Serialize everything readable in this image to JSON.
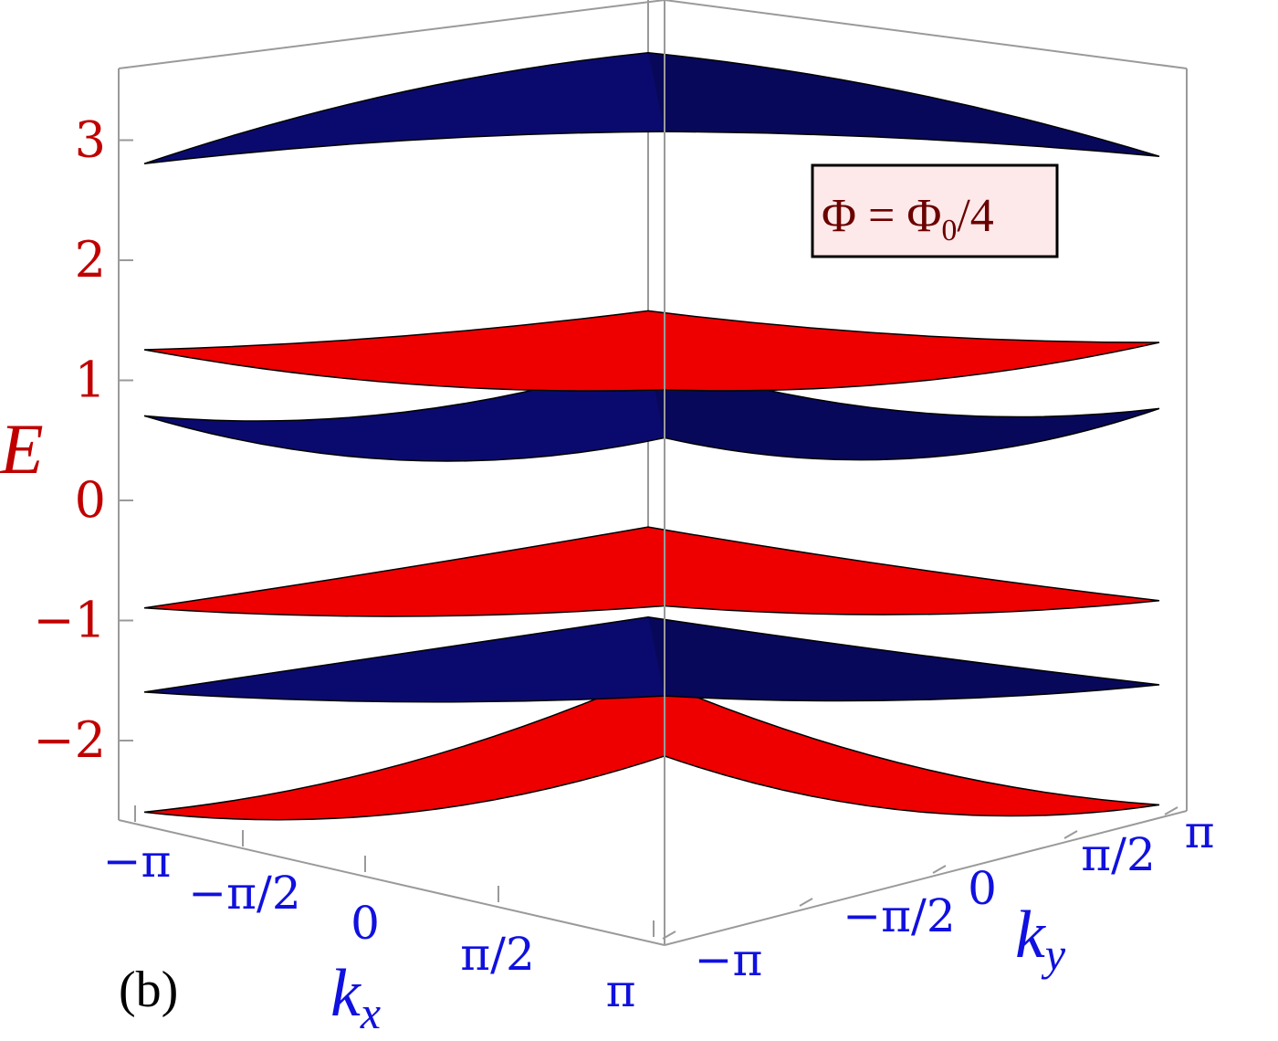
{
  "chart_data": {
    "type": "surface3d",
    "title": "",
    "legend": {
      "text_main": "Φ = Φ",
      "text_sub": "0",
      "text_tail": "/4",
      "placement": "top-right"
    },
    "panel_label": "(b)",
    "axes": {
      "z": {
        "label": "E",
        "ticks": [
          3,
          2,
          1,
          0,
          -1,
          -2
        ],
        "tick_labels": [
          "3",
          "2",
          "1",
          "0",
          "−1",
          "−2"
        ],
        "range": [
          -2.6,
          3.5
        ],
        "color": "#c00000"
      },
      "x": {
        "label_main": "k",
        "label_sub": "x",
        "ticks": [
          "−π",
          "−π/2",
          "0",
          "π/2",
          "π"
        ],
        "range": [
          -3.1416,
          3.1416
        ],
        "color": "#1010e0"
      },
      "y": {
        "label_main": "k",
        "label_sub": "y",
        "ticks": [
          "−π",
          "−π/2",
          "0",
          "π/2",
          "π"
        ],
        "range": [
          -3.1416,
          3.1416
        ],
        "color": "#1010e0"
      }
    },
    "series": [
      {
        "band": 1,
        "color": "#ee0000",
        "corner": -2.55,
        "edge_mid": -2.6,
        "center": -1.8
      },
      {
        "band": 2,
        "color": "#0a0a6e",
        "corner": -1.55,
        "edge_mid": -1.5,
        "center": -1.3
      },
      {
        "band": 3,
        "color": "#ee0000",
        "corner": -0.85,
        "edge_mid": -0.8,
        "center": -0.55
      },
      {
        "band": 4,
        "color": "#0a0a6e",
        "corner": 0.75,
        "edge_mid": 0.3,
        "center": 0.85
      },
      {
        "band": 5,
        "color": "#ee0000",
        "corner": 1.3,
        "edge_mid": 1.1,
        "center": 1.25
      },
      {
        "band": 6,
        "color": "#0a0a6e",
        "corner": 2.85,
        "edge_mid": 3.3,
        "center": 3.4
      }
    ],
    "colors": {
      "positive_band": "#0a0a6e",
      "negative_band": "#ee0000",
      "frame": "#9a9a9a"
    }
  }
}
